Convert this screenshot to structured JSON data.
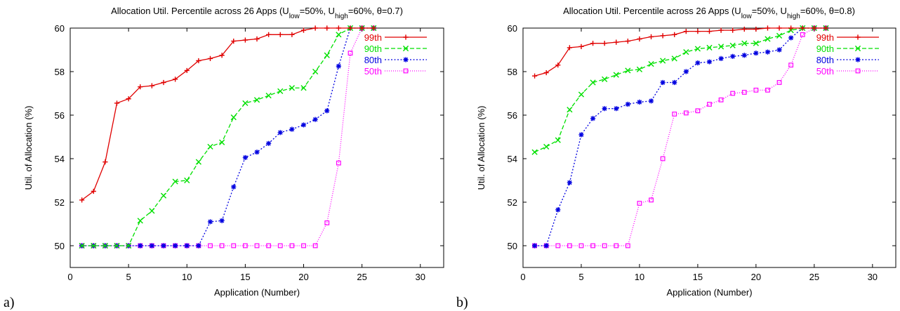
{
  "chart_data": [
    {
      "type": "line",
      "panel_letter": "a)",
      "title": {
        "prefix": "Allocation Util. Percentile across 26 Apps (U",
        "sub_low": "low",
        "mid1": "=50%, U",
        "sub_high": "high",
        "mid2": "=60%, ",
        "theta": "θ",
        "suffix": "=0.7)"
      },
      "xlabel": "Application (Number)",
      "ylabel": "Util. of Allocation (%)",
      "xlim": [
        0,
        32
      ],
      "ylim": [
        49,
        60
      ],
      "xticks": [
        0,
        5,
        10,
        15,
        20,
        25,
        30
      ],
      "yticks": [
        50,
        52,
        54,
        56,
        58,
        60
      ],
      "legend_position": "top-right",
      "x": [
        1,
        2,
        3,
        4,
        5,
        6,
        7,
        8,
        9,
        10,
        11,
        12,
        13,
        14,
        15,
        16,
        17,
        18,
        19,
        20,
        21,
        22,
        23,
        24,
        25,
        26
      ],
      "series": [
        {
          "name": "99th",
          "color": "#e00000",
          "marker": "plus",
          "dash": "none",
          "values": [
            52.1,
            52.5,
            53.85,
            56.55,
            56.75,
            57.3,
            57.35,
            57.5,
            57.65,
            58.05,
            58.5,
            58.6,
            58.75,
            59.4,
            59.45,
            59.5,
            59.7,
            59.7,
            59.7,
            59.9,
            60.0,
            60.0,
            60.0,
            60.0,
            60.0,
            60.0
          ]
        },
        {
          "name": "90th",
          "color": "#00e000",
          "marker": "cross",
          "dash": "6,3",
          "values": [
            50.0,
            50.0,
            50.0,
            50.0,
            50.0,
            51.15,
            51.6,
            52.3,
            52.95,
            53.0,
            53.85,
            54.55,
            54.75,
            55.9,
            56.55,
            56.7,
            56.9,
            57.1,
            57.25,
            57.25,
            58.0,
            58.75,
            59.7,
            60.0,
            60.0,
            60.0
          ]
        },
        {
          "name": "80th",
          "color": "#0000e0",
          "marker": "star",
          "dash": "2,2.5",
          "values": [
            50.0,
            50.0,
            50.0,
            50.0,
            50.0,
            50.0,
            50.0,
            50.0,
            50.0,
            50.0,
            50.0,
            51.1,
            51.15,
            52.7,
            54.05,
            54.3,
            54.7,
            55.2,
            55.35,
            55.55,
            55.8,
            56.2,
            58.25,
            60.0,
            60.0,
            60.0
          ]
        },
        {
          "name": "50th",
          "color": "#ff00ff",
          "marker": "square",
          "dash": "1,2",
          "values": [
            50.0,
            50.0,
            50.0,
            50.0,
            50.0,
            50.0,
            50.0,
            50.0,
            50.0,
            50.0,
            50.0,
            50.0,
            50.0,
            50.0,
            50.0,
            50.0,
            50.0,
            50.0,
            50.0,
            50.0,
            50.0,
            51.05,
            53.8,
            58.85,
            60.0,
            60.0
          ]
        }
      ]
    },
    {
      "type": "line",
      "panel_letter": "b)",
      "title": {
        "prefix": "Allocation Util. Percentile across 26 Apps (U",
        "sub_low": "low",
        "mid1": "=50%, U",
        "sub_high": "high",
        "mid2": "=60%, ",
        "theta": "θ",
        "suffix": "=0.8)"
      },
      "xlabel": "Application (Number)",
      "ylabel": "Util. of Allocation  (%)",
      "xlim": [
        0,
        32
      ],
      "ylim": [
        49,
        60
      ],
      "xticks": [
        0,
        5,
        10,
        15,
        20,
        25,
        30
      ],
      "yticks": [
        50,
        52,
        54,
        56,
        58,
        60
      ],
      "legend_position": "top-right",
      "x": [
        1,
        2,
        3,
        4,
        5,
        6,
        7,
        8,
        9,
        10,
        11,
        12,
        13,
        14,
        15,
        16,
        17,
        18,
        19,
        20,
        21,
        22,
        23,
        24,
        25,
        26
      ],
      "series": [
        {
          "name": "99th",
          "color": "#e00000",
          "marker": "plus",
          "dash": "none",
          "values": [
            57.8,
            57.95,
            58.3,
            59.1,
            59.15,
            59.3,
            59.3,
            59.35,
            59.4,
            59.5,
            59.6,
            59.65,
            59.7,
            59.85,
            59.85,
            59.85,
            59.9,
            59.9,
            59.95,
            59.95,
            60.0,
            60.0,
            60.0,
            60.0,
            60.0,
            60.0
          ]
        },
        {
          "name": "90th",
          "color": "#00e000",
          "marker": "cross",
          "dash": "6,3",
          "values": [
            54.3,
            54.55,
            54.85,
            56.25,
            56.95,
            57.5,
            57.65,
            57.85,
            58.05,
            58.1,
            58.35,
            58.5,
            58.6,
            58.9,
            59.05,
            59.1,
            59.15,
            59.2,
            59.3,
            59.3,
            59.5,
            59.65,
            59.9,
            60.0,
            60.0,
            60.0
          ]
        },
        {
          "name": "80th",
          "color": "#0000e0",
          "marker": "star",
          "dash": "2,2.5",
          "values": [
            50.0,
            50.0,
            51.65,
            52.9,
            55.1,
            55.85,
            56.3,
            56.3,
            56.5,
            56.6,
            56.65,
            57.5,
            57.5,
            58.0,
            58.4,
            58.45,
            58.6,
            58.7,
            58.75,
            58.85,
            58.9,
            59.0,
            59.55,
            60.0,
            60.0,
            60.0
          ]
        },
        {
          "name": "50th",
          "color": "#ff00ff",
          "marker": "square",
          "dash": "1,2",
          "values": [
            50.0,
            50.0,
            50.0,
            50.0,
            50.0,
            50.0,
            50.0,
            50.0,
            50.0,
            51.95,
            52.1,
            54.0,
            56.05,
            56.1,
            56.2,
            56.5,
            56.7,
            57.0,
            57.05,
            57.15,
            57.15,
            57.5,
            58.3,
            59.7,
            60.0,
            60.0
          ]
        }
      ]
    }
  ]
}
